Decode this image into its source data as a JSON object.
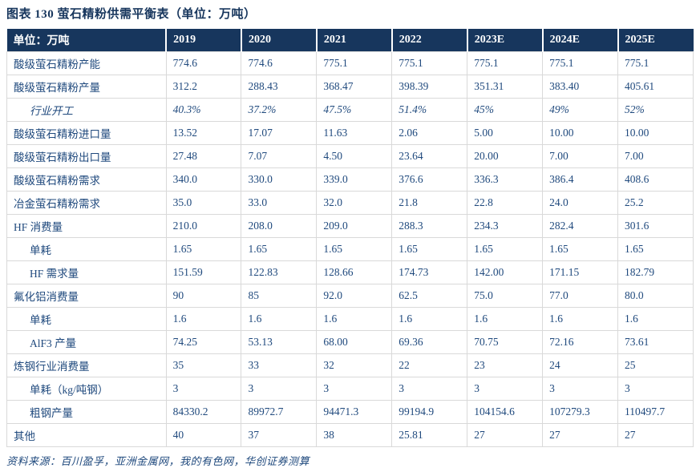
{
  "title": "图表 130  萤石精粉供需平衡表（单位：万吨）",
  "source": "资料来源：百川盈孚，亚洲金属网，我的有色网，华创证券测算",
  "colors": {
    "header_bg": "#17365D",
    "header_text": "#FFFFFF",
    "body_text": "#1F497D",
    "border": "#D9D9D9",
    "title_text": "#17365D"
  },
  "table": {
    "columns": [
      "单位：万吨",
      "2019",
      "2020",
      "2021",
      "2022",
      "2023E",
      "2024E",
      "2025E"
    ],
    "rows": [
      {
        "label": "酸级萤石精粉产能",
        "indent": false,
        "italic": false,
        "values": [
          "774.6",
          "774.6",
          "775.1",
          "775.1",
          "775.1",
          "775.1",
          "775.1"
        ]
      },
      {
        "label": "酸级萤石精粉产量",
        "indent": false,
        "italic": false,
        "values": [
          "312.2",
          "288.43",
          "368.47",
          "398.39",
          "351.31",
          "383.40",
          "405.61"
        ]
      },
      {
        "label": "行业开工",
        "indent": true,
        "italic": true,
        "values": [
          "40.3%",
          "37.2%",
          "47.5%",
          "51.4%",
          "45%",
          "49%",
          "52%"
        ]
      },
      {
        "label": "酸级萤石精粉进口量",
        "indent": false,
        "italic": false,
        "values": [
          "13.52",
          "17.07",
          "11.63",
          "2.06",
          "5.00",
          "10.00",
          "10.00"
        ]
      },
      {
        "label": "酸级萤石精粉出口量",
        "indent": false,
        "italic": false,
        "values": [
          "27.48",
          "7.07",
          "4.50",
          "23.64",
          "20.00",
          "7.00",
          "7.00"
        ]
      },
      {
        "label": "酸级萤石精粉需求",
        "indent": false,
        "italic": false,
        "values": [
          "340.0",
          "330.0",
          "339.0",
          "376.6",
          "336.3",
          "386.4",
          "408.6"
        ]
      },
      {
        "label": "冶金萤石精粉需求",
        "indent": false,
        "italic": false,
        "values": [
          "35.0",
          "33.0",
          "32.0",
          "21.8",
          "22.8",
          "24.0",
          "25.2"
        ]
      },
      {
        "label": "HF 消费量",
        "indent": false,
        "italic": false,
        "values": [
          "210.0",
          "208.0",
          "209.0",
          "288.3",
          "234.3",
          "282.4",
          "301.6"
        ]
      },
      {
        "label": "单耗",
        "indent": true,
        "italic": false,
        "values": [
          "1.65",
          "1.65",
          "1.65",
          "1.65",
          "1.65",
          "1.65",
          "1.65"
        ]
      },
      {
        "label": "HF 需求量",
        "indent": true,
        "italic": false,
        "values": [
          "151.59",
          "122.83",
          "128.66",
          "174.73",
          "142.00",
          "171.15",
          "182.79"
        ]
      },
      {
        "label": "氟化铝消费量",
        "indent": false,
        "italic": false,
        "values": [
          "90",
          "85",
          "92.0",
          "62.5",
          "75.0",
          "77.0",
          "80.0"
        ]
      },
      {
        "label": "单耗",
        "indent": true,
        "italic": false,
        "values": [
          "1.6",
          "1.6",
          "1.6",
          "1.6",
          "1.6",
          "1.6",
          "1.6"
        ]
      },
      {
        "label": "AlF3 产量",
        "indent": true,
        "italic": false,
        "values": [
          "74.25",
          "53.13",
          "68.00",
          "69.36",
          "70.75",
          "72.16",
          "73.61"
        ]
      },
      {
        "label": "炼钢行业消费量",
        "indent": false,
        "italic": false,
        "values": [
          "35",
          "33",
          "32",
          "22",
          "23",
          "24",
          "25"
        ]
      },
      {
        "label": "单耗（kg/吨钢）",
        "indent": true,
        "italic": false,
        "values": [
          "3",
          "3",
          "3",
          "3",
          "3",
          "3",
          "3"
        ]
      },
      {
        "label": "粗钢产量",
        "indent": true,
        "italic": false,
        "values": [
          "84330.2",
          "89972.7",
          "94471.3",
          "99194.9",
          "104154.6",
          "107279.3",
          "110497.7"
        ]
      },
      {
        "label": "其他",
        "indent": false,
        "italic": false,
        "values": [
          "40",
          "37",
          "38",
          "25.81",
          "27",
          "27",
          "27"
        ]
      }
    ]
  }
}
